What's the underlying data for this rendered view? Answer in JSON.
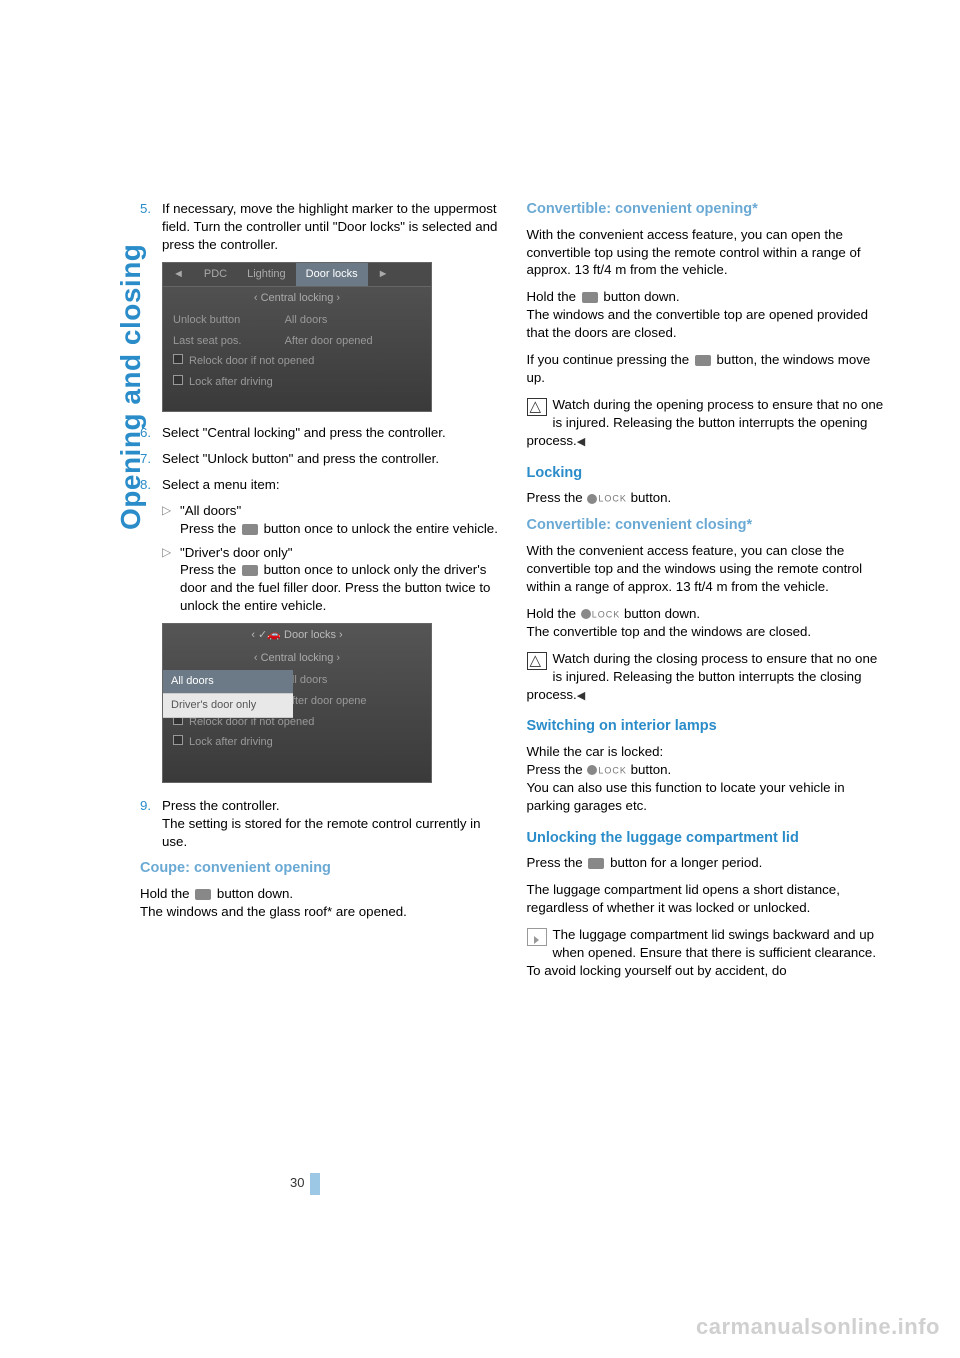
{
  "section_tab": "Opening and closing",
  "page_number": "30",
  "watermark": "carmanualsonline.info",
  "colors": {
    "accent": "#2a8cc9",
    "sub_accent": "#6aa9d4",
    "text": "#000000",
    "bg": "#ffffff"
  },
  "left": {
    "step5": {
      "num": "5.",
      "text": "If necessary, move the highlight marker to the uppermost field. Turn the controller until \"Door locks\" is selected and press the controller."
    },
    "screenshot1": {
      "tabs": [
        "◄",
        "PDC",
        "Lighting",
        "Door locks",
        "►"
      ],
      "active_tab": 3,
      "subheader": "‹ Central locking ›",
      "rows": [
        {
          "l": "Unlock button",
          "r": "All doors"
        },
        {
          "l": "Last seat pos.",
          "r": "After door opened"
        },
        {
          "l": "Relock door if not opened",
          "check": true
        },
        {
          "l": "Lock after driving",
          "check": true
        }
      ]
    },
    "step6": {
      "num": "6.",
      "text": "Select \"Central locking\" and press the controller."
    },
    "step7": {
      "num": "7.",
      "text": "Select \"Unlock button\" and press the controller."
    },
    "step8": {
      "num": "8.",
      "text": "Select a menu item:"
    },
    "step8a": {
      "title": "\"All doors\"",
      "body": "Press the  button once to unlock the entire vehicle."
    },
    "step8b": {
      "title": "\"Driver's door only\"",
      "body": "Press the  button once to unlock only the driver's door and the fuel filler door. Press the button twice to unlock the entire vehicle."
    },
    "screenshot2": {
      "top1": "‹ ✓🚗 Door locks ›",
      "top2": "‹ Central locking ›",
      "dropdown": [
        "All doors",
        "Driver's door only"
      ],
      "dropdown_hl": 0,
      "rows": [
        {
          "r": "All doors"
        },
        {
          "r": "After door opene"
        },
        {
          "l": "Relock door if not opened",
          "check": true
        },
        {
          "l": "Lock after driving",
          "check": true
        }
      ]
    },
    "step9": {
      "num": "9.",
      "text": "Press the controller.",
      "extra": "The setting is stored for the remote control currently in use."
    },
    "coupe_h": "Coupe: convenient opening",
    "coupe_p": "Hold the  button down.\nThe windows and the glass roof* are opened."
  },
  "right": {
    "conv_open_h": "Convertible: convenient opening*",
    "conv_open_p1": "With the convenient access feature, you can open the convertible top using the remote control within a range of approx. 13 ft/4 m from the vehicle.",
    "conv_open_p2": "Hold the  button down.\nThe windows and the convertible top are opened provided that the doors are closed.",
    "conv_open_p3": "If you continue pressing the  button, the windows move up.",
    "conv_open_warn": "Watch during the opening process to ensure that no one is injured. Releasing the button interrupts the opening process.",
    "locking_h": "Locking",
    "locking_p": "Press the  button.",
    "conv_close_h": "Convertible: convenient closing*",
    "conv_close_p1": "With the convenient access feature, you can close the convertible top and the windows using the remote control within a range of approx. 13 ft/4 m from the vehicle.",
    "conv_close_p2": "Hold the  button down.\nThe convertible top and the windows are closed.",
    "conv_close_warn": "Watch during the closing process to ensure that no one is injured. Releasing the button interrupts the closing process.",
    "interior_h": "Switching on interior lamps",
    "interior_p": "While the car is locked:\nPress the  button.\nYou can also use this function to locate your vehicle in parking garages etc.",
    "luggage_h": "Unlocking the luggage compartment lid",
    "luggage_p1": "Press the  button for a longer period.",
    "luggage_p2": "The luggage compartment lid opens a short distance, regardless of whether it was locked or unlocked.",
    "luggage_info": "The luggage compartment lid swings backward and up when opened. Ensure that there is sufficient clearance.\nTo avoid locking yourself out by accident, do"
  }
}
